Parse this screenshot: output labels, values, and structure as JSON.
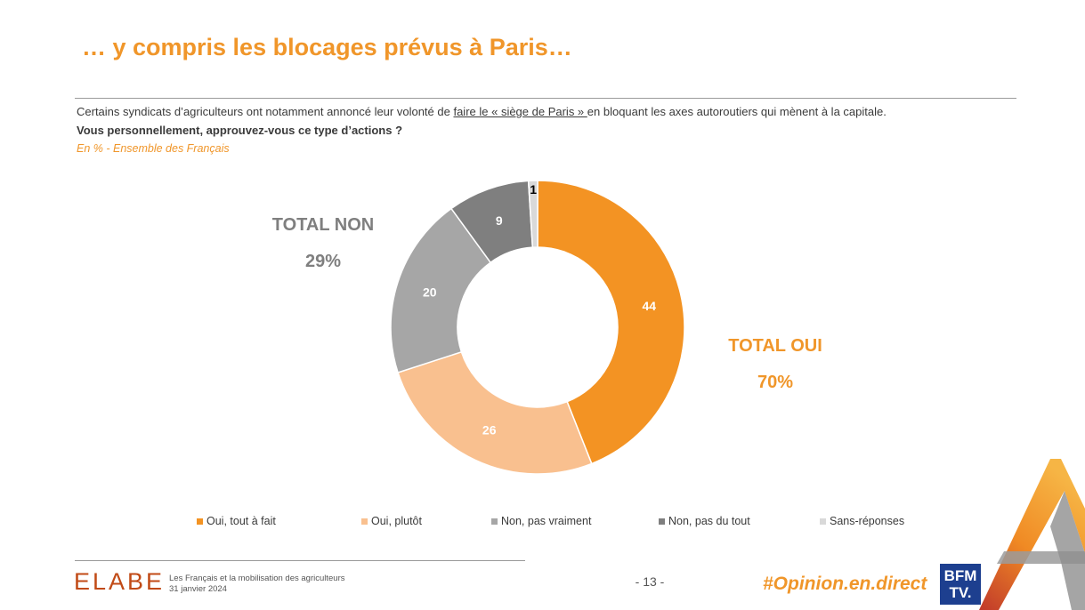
{
  "title": "… y compris les blocages prévus à Paris…",
  "intro": {
    "before": "Certains syndicats d’agriculteurs ont notamment annoncé leur volonté de ",
    "underlined": "faire le « siège de Paris » ",
    "after": "en bloquant les axes autoroutiers qui mènent à la capitale."
  },
  "question": "Vous personnellement, approuvez-vous ce type d’actions ?",
  "base": "En % - Ensemble des Français",
  "totals": {
    "non_label": "TOTAL NON",
    "non_value": "29%",
    "oui_label": "TOTAL OUI",
    "oui_value": "70%"
  },
  "chart_data": {
    "type": "pie",
    "donut": true,
    "unit": "%",
    "series": [
      {
        "name": "Oui, tout à fait",
        "value": 44,
        "color": "#f39323",
        "label_color": "#ffffff"
      },
      {
        "name": "Oui, plutôt",
        "value": 26,
        "color": "#f9c08f",
        "label_color": "#ffffff"
      },
      {
        "name": "Non, pas vraiment",
        "value": 20,
        "color": "#a6a6a6",
        "label_color": "#ffffff"
      },
      {
        "name": "Non, pas du tout",
        "value": 9,
        "color": "#7f7f7f",
        "label_color": "#ffffff"
      },
      {
        "name": "Sans-réponses",
        "value": 1,
        "color": "#d9d9d9",
        "label_color": "#000000"
      }
    ],
    "legend_position": "bottom"
  },
  "footer": {
    "logo": "ELABE",
    "study_title": "Les Français et la mobilisation des agriculteurs",
    "date": "31 janvier 2024",
    "page_number": "- 13 -",
    "hashtag": "#Opinion.en.direct",
    "partner_logo_line1": "BFM",
    "partner_logo_line2": "TV."
  }
}
